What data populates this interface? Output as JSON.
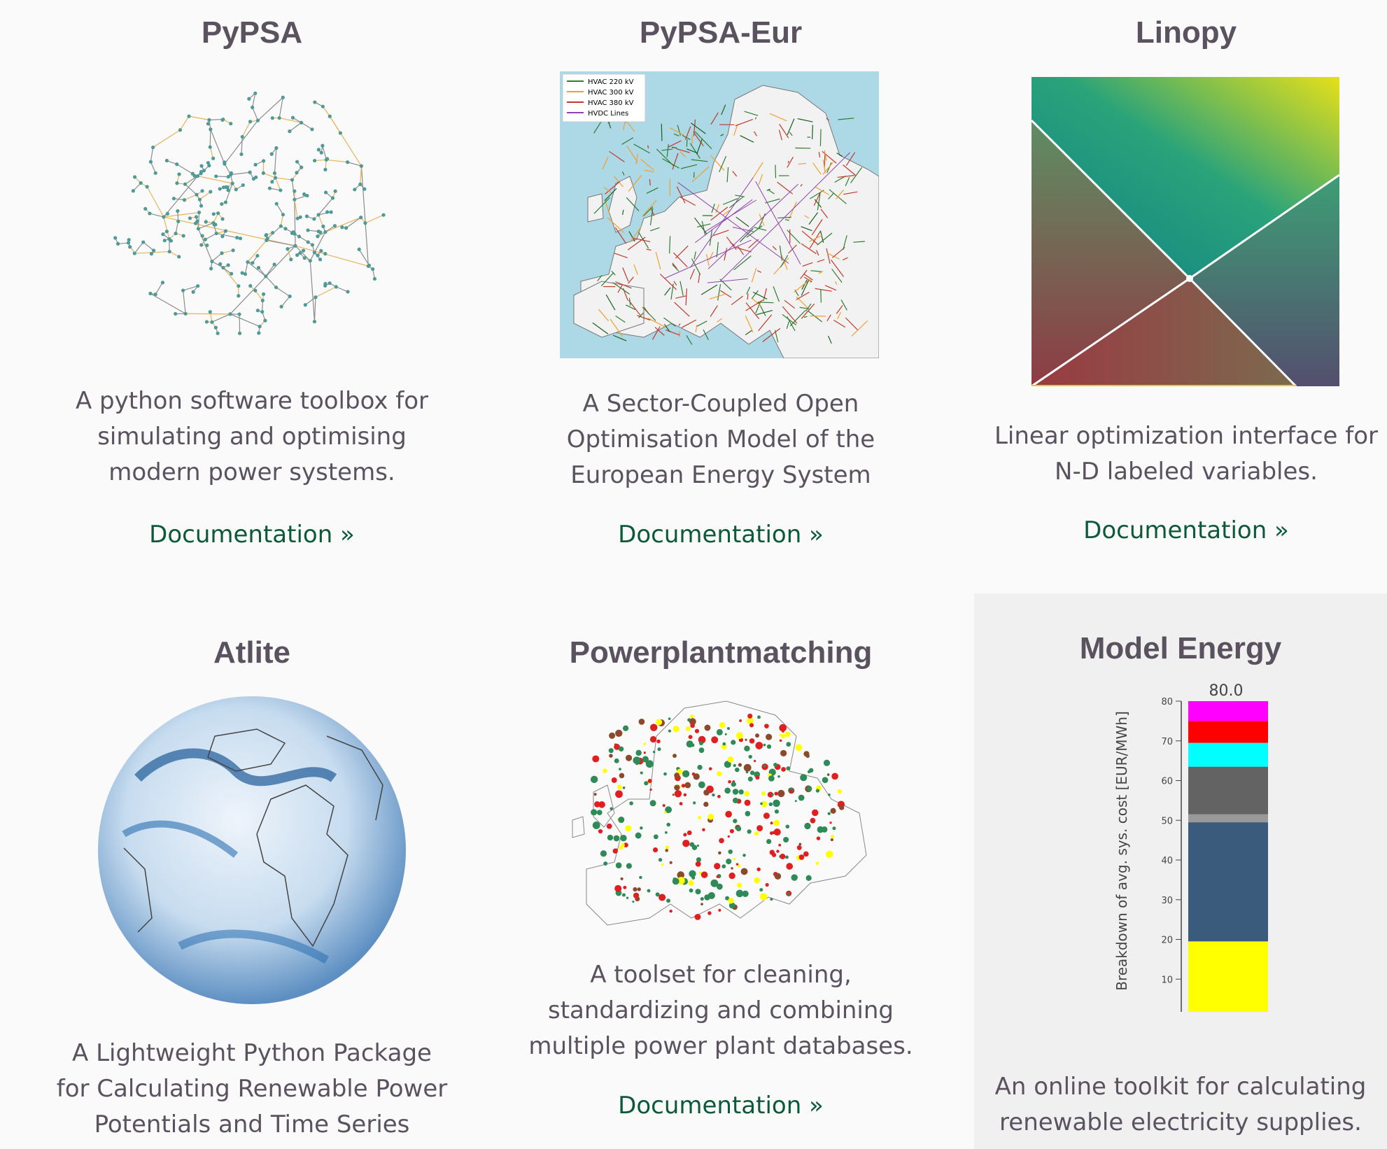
{
  "projects": [
    {
      "title": "PyPSA",
      "description": "A python software toolbox for simulating and optimising modern power systems.",
      "link": "Documentation »"
    },
    {
      "title": "PyPSA-Eur",
      "description": "A Sector-Coupled Open Optimisation Model of the European Energy System",
      "link": "Documentation »"
    },
    {
      "title": "Linopy",
      "description": "Linear optimization interface for N-D labeled variables.",
      "link": "Documentation »"
    },
    {
      "title": "Atlite",
      "description": "A Lightweight Python Package for Calculating Renewable Power Potentials and Time Series",
      "link": ""
    },
    {
      "title": "Powerplantmatching",
      "description": "A toolset for cleaning, standardizing and combining multiple power plant databases.",
      "link": "Documentation »"
    },
    {
      "title": "Model Energy",
      "description": "An online toolkit for calculating renewable electricity supplies.",
      "link": ""
    }
  ],
  "pypsa_eur_legend": [
    "HVAC 220 kV",
    "HVAC 300 kV",
    "HVAC 380 kV",
    "HVDC Lines"
  ],
  "legend_colors": [
    "#2e7d32",
    "#f0a030",
    "#c0392b",
    "#8e44ad"
  ],
  "chart_data": {
    "type": "bar",
    "ylabel": "Breakdown of avg. sys. cost [EUR/MWh]",
    "total_label": "80.0",
    "ylim": [
      0,
      80
    ],
    "yticks": [
      "0",
      "10",
      "20",
      "30",
      "40",
      "50",
      "60",
      "70",
      "80"
    ],
    "segments": [
      {
        "value": 19.5,
        "color": "#ffff00"
      },
      {
        "value": 30,
        "color": "#3b5b7d"
      },
      {
        "value": 2,
        "color": "#999999"
      },
      {
        "value": 12,
        "color": "#636363"
      },
      {
        "value": 6,
        "color": "#00ffff"
      },
      {
        "value": 5.5,
        "color": "#ff0000"
      },
      {
        "value": 5,
        "color": "#ff00ff"
      }
    ]
  }
}
